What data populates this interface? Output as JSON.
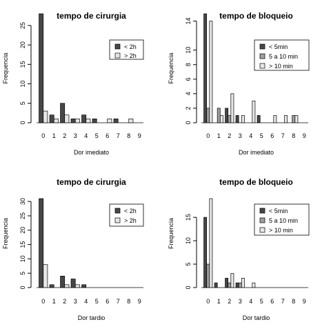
{
  "chart_data": [
    {
      "type": "bar",
      "title": "tempo de cirurgia",
      "xlabel": "Dor imediato",
      "ylabel": "Frequencia",
      "categories": [
        "0",
        "1",
        "2",
        "3",
        "4",
        "5",
        "6",
        "7",
        "8",
        "9"
      ],
      "ylim": [
        0,
        28
      ],
      "yticks": [
        0,
        5,
        10,
        15,
        20,
        25
      ],
      "legend": "top-right",
      "series": [
        {
          "name": "< 2h",
          "color": "#474747",
          "values": [
            28,
            2,
            5,
            1,
            2,
            1,
            0,
            1,
            0,
            0
          ]
        },
        {
          "name": "> 2h",
          "color": "#e6e6e6",
          "values": [
            3,
            1,
            2,
            1,
            1,
            0,
            1,
            0,
            1,
            0
          ]
        }
      ]
    },
    {
      "type": "bar",
      "title": "tempo de bloqueio",
      "xlabel": "Dor imediato",
      "ylabel": "Frequencia",
      "categories": [
        "0",
        "1",
        "2",
        "3",
        "4",
        "5",
        "6",
        "7",
        "8",
        "9"
      ],
      "ylim": [
        0,
        15
      ],
      "yticks": [
        0,
        2,
        4,
        6,
        8,
        10,
        14
      ],
      "legend": "top-right",
      "series": [
        {
          "name": "< 5min",
          "color": "#474747",
          "values": [
            15,
            0,
            2,
            1,
            0,
            1,
            0,
            0,
            0,
            0
          ]
        },
        {
          "name": "5 a 10 min",
          "color": "#9e9e9e",
          "values": [
            2,
            2,
            1,
            0,
            0,
            0,
            0,
            0,
            1,
            0
          ]
        },
        {
          "name": "> 10 min",
          "color": "#e6e6e6",
          "values": [
            14,
            1,
            4,
            1,
            3,
            0,
            1,
            1,
            1,
            0
          ]
        }
      ]
    },
    {
      "type": "bar",
      "title": "tempo de cirurgia",
      "xlabel": "Dor tardio",
      "ylabel": "Frequencia",
      "categories": [
        "0",
        "1",
        "2",
        "3",
        "4",
        "5",
        "6",
        "7",
        "8",
        "9"
      ],
      "ylim": [
        0,
        31
      ],
      "yticks": [
        0,
        5,
        10,
        15,
        20,
        25,
        30
      ],
      "legend": "top-right",
      "series": [
        {
          "name": "< 2h",
          "color": "#474747",
          "values": [
            31,
            1,
            4,
            3,
            1,
            0,
            0,
            0,
            0,
            0
          ]
        },
        {
          "name": "> 2h",
          "color": "#e6e6e6",
          "values": [
            8,
            0,
            1,
            1,
            0,
            0,
            0,
            0,
            0,
            0
          ]
        }
      ]
    },
    {
      "type": "bar",
      "title": "tempo de bloqueio",
      "xlabel": "Dor tardio",
      "ylabel": "Frequencia",
      "categories": [
        "0",
        "1",
        "2",
        "3",
        "4",
        "5",
        "6",
        "7",
        "8",
        "9"
      ],
      "ylim": [
        0,
        19
      ],
      "yticks": [
        0,
        5,
        10,
        15
      ],
      "legend": "top-right",
      "series": [
        {
          "name": "< 5min",
          "color": "#474747",
          "values": [
            15,
            1,
            2,
            1,
            0,
            0,
            0,
            0,
            0,
            0
          ]
        },
        {
          "name": "5 a 10 min",
          "color": "#9e9e9e",
          "values": [
            5,
            0,
            1,
            1,
            0,
            0,
            0,
            0,
            0,
            0
          ]
        },
        {
          "name": "> 10 min",
          "color": "#e6e6e6",
          "values": [
            19,
            0,
            3,
            2,
            1,
            0,
            0,
            0,
            0,
            0
          ]
        }
      ]
    }
  ]
}
